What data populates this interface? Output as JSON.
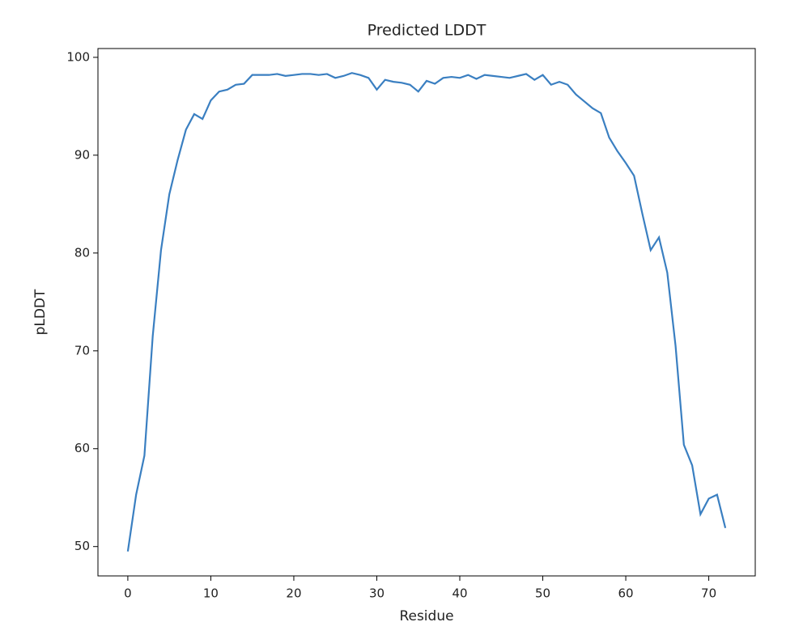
{
  "chart_data": {
    "type": "line",
    "title": "Predicted LDDT",
    "x_label": "Residue",
    "y_label": "pLDDT",
    "x": [
      0,
      1,
      2,
      3,
      4,
      5,
      6,
      7,
      8,
      9,
      10,
      11,
      12,
      13,
      14,
      15,
      16,
      17,
      18,
      19,
      20,
      21,
      22,
      23,
      24,
      25,
      26,
      27,
      28,
      29,
      30,
      31,
      32,
      33,
      34,
      35,
      36,
      37,
      38,
      39,
      40,
      41,
      42,
      43,
      44,
      45,
      46,
      47,
      48,
      49,
      50,
      51,
      52,
      53,
      54,
      55,
      56,
      57,
      58,
      59,
      60,
      61,
      62,
      63,
      64,
      65,
      66,
      67,
      68,
      69,
      70,
      71,
      72
    ],
    "series": [
      {
        "color": "#3a7fc1",
        "values": [
          49.5,
          55.3,
          59.3,
          71.5,
          80.3,
          86.0,
          89.5,
          92.6,
          94.2,
          93.7,
          95.6,
          96.5,
          96.7,
          97.2,
          97.3,
          98.2,
          98.2,
          98.2,
          98.3,
          98.1,
          98.2,
          98.3,
          98.3,
          98.2,
          98.3,
          97.9,
          98.1,
          98.4,
          98.2,
          97.9,
          96.7,
          97.7,
          97.5,
          97.4,
          97.2,
          96.5,
          97.6,
          97.3,
          97.9,
          98.0,
          97.9,
          98.2,
          97.8,
          98.2,
          98.1,
          98.0,
          97.9,
          98.1,
          98.3,
          97.7,
          98.2,
          97.2,
          97.5,
          97.2,
          96.2,
          95.5,
          94.8,
          94.3,
          91.8,
          90.4,
          89.2,
          87.9,
          84.0,
          80.3,
          81.6,
          78.0,
          70.5,
          60.4,
          58.3,
          53.3,
          54.9,
          55.3,
          51.9
        ]
      }
    ],
    "xlim": [
      -3.6,
      75.6
    ],
    "ylim": [
      47.0,
      100.9
    ],
    "xticks": [
      0,
      10,
      20,
      30,
      40,
      50,
      60,
      70
    ],
    "yticks": [
      50,
      60,
      70,
      80,
      90,
      100
    ],
    "grid": false
  }
}
